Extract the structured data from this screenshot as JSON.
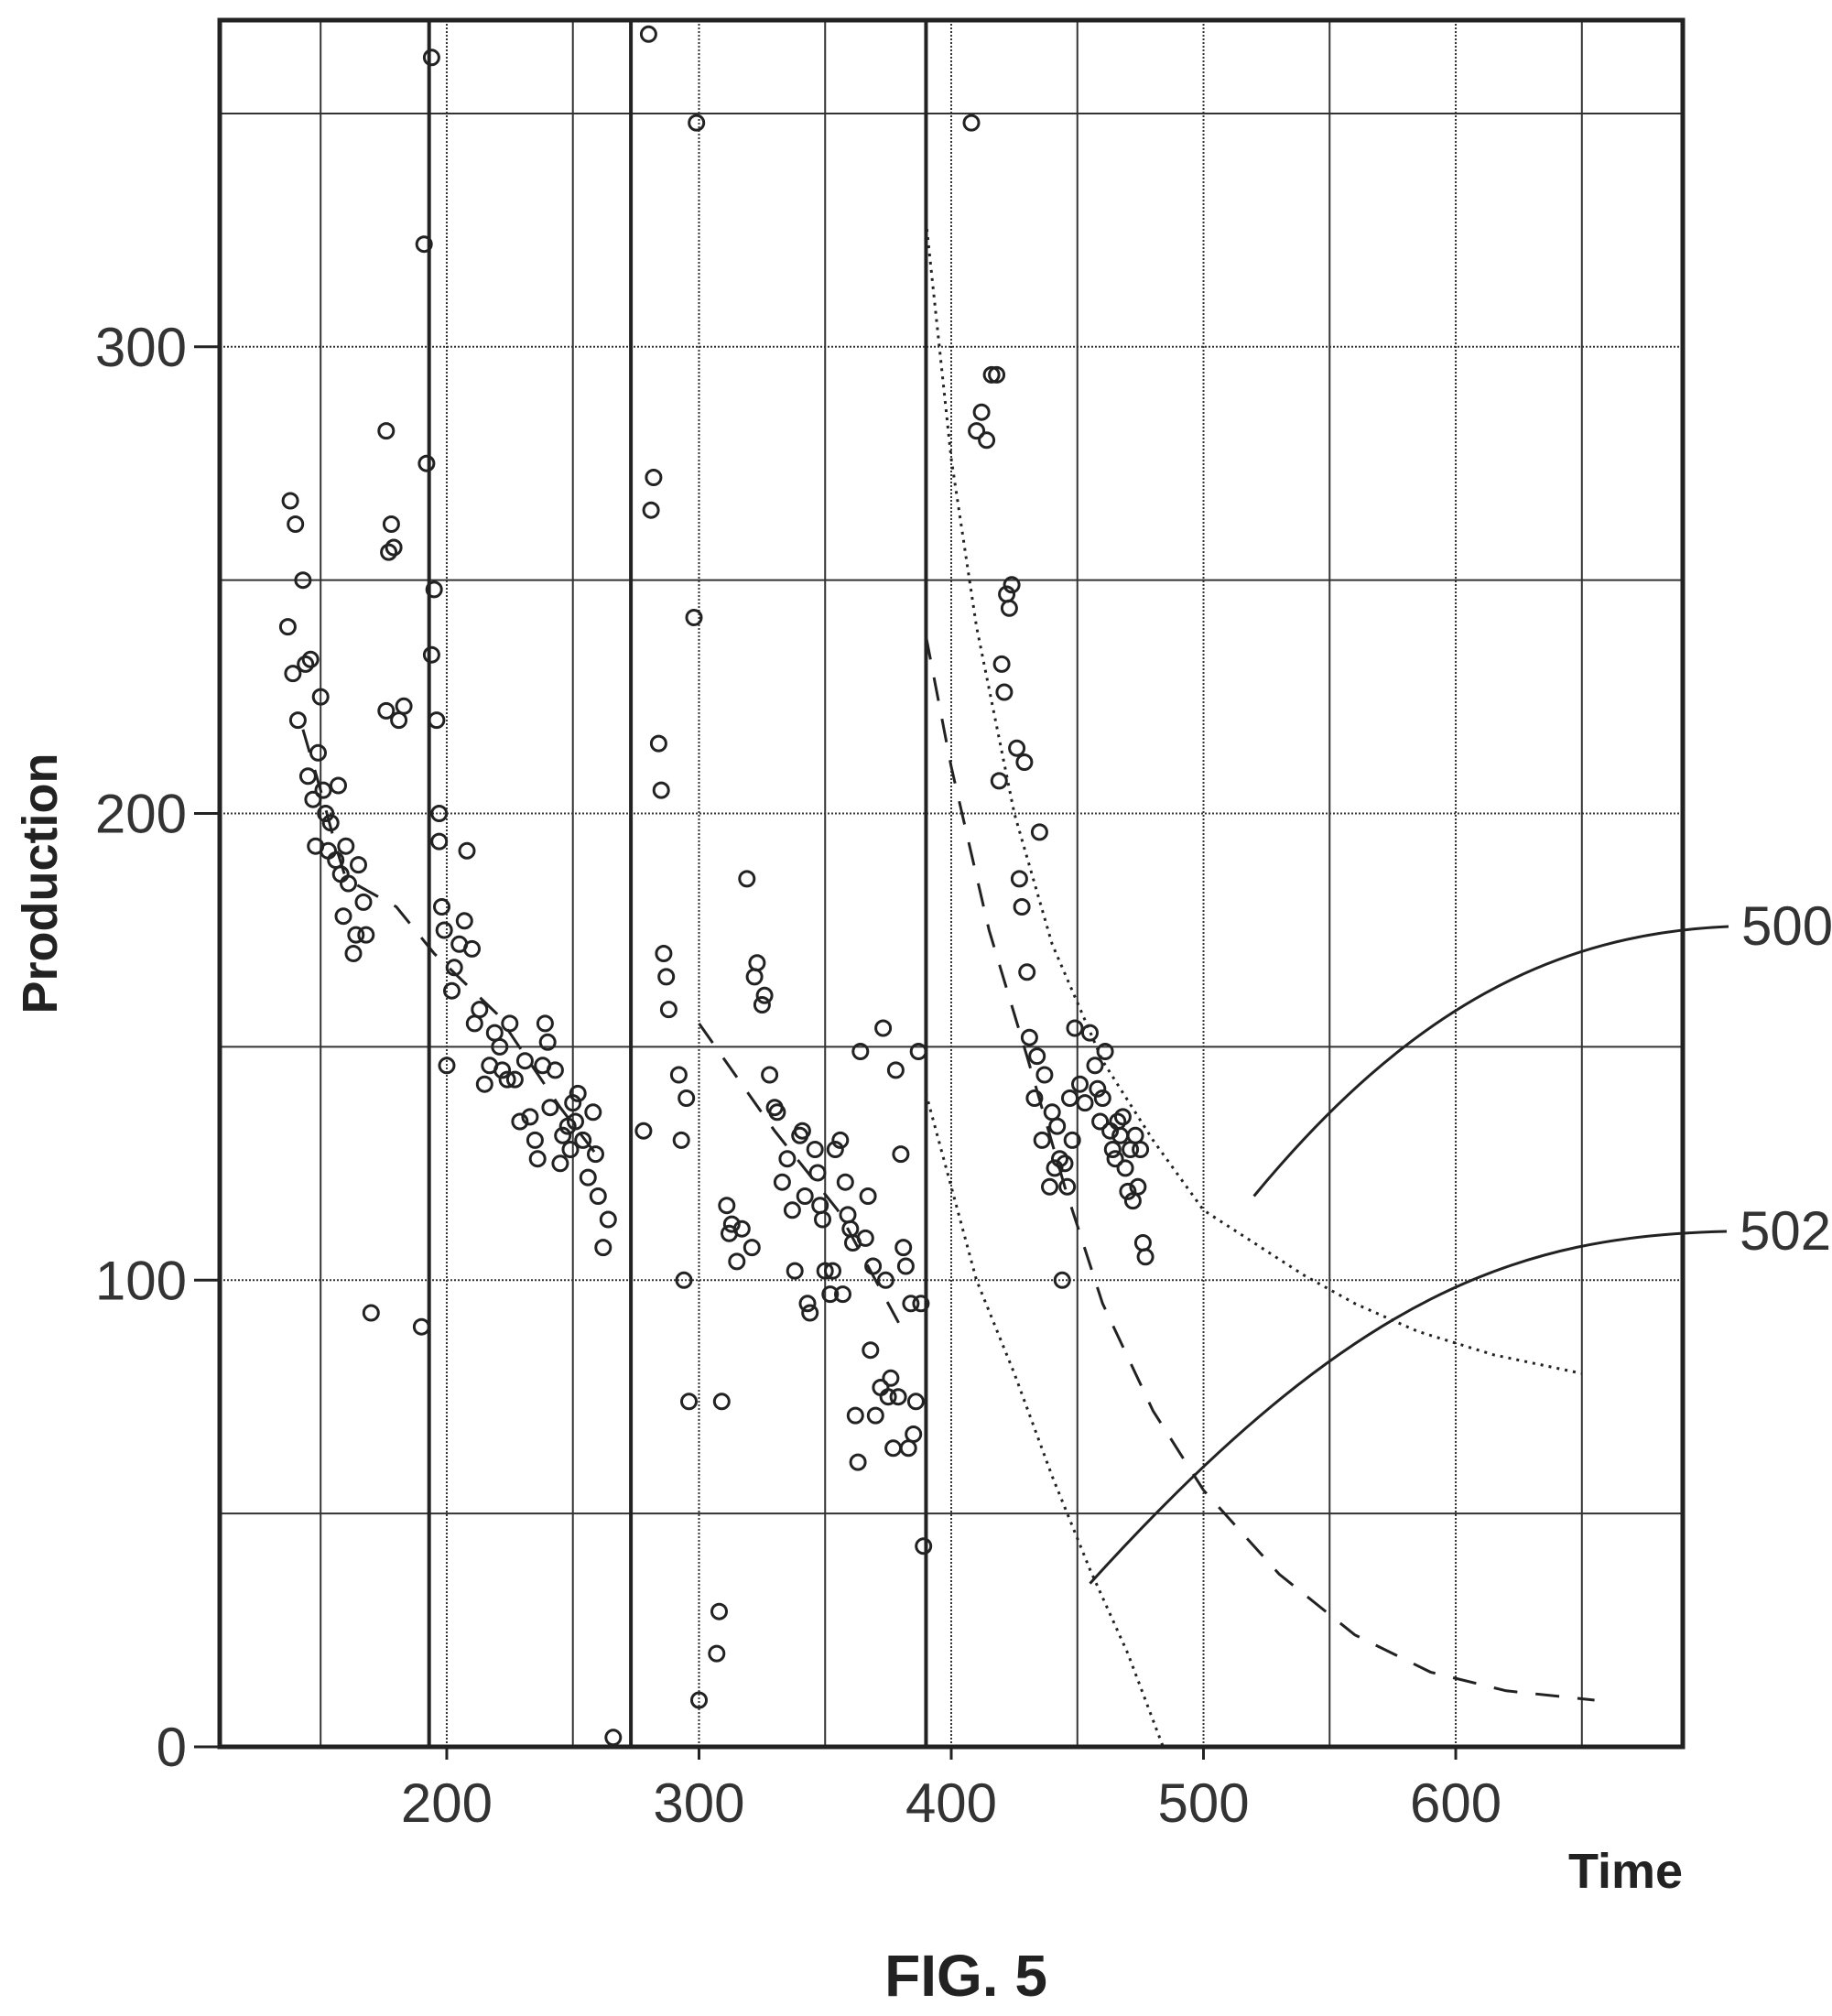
{
  "figure_label": "FIG. 5",
  "chart_data": {
    "type": "scatter",
    "xlabel": "Time",
    "ylabel": "Production",
    "xlim": [
      110,
      690
    ],
    "ylim": [
      0,
      370
    ],
    "x_ticks": [
      "200",
      "300",
      "400",
      "500",
      "600"
    ],
    "x_tick_values": [
      200,
      300,
      400,
      500,
      600
    ],
    "y_ticks": [
      "0",
      "100",
      "200",
      "300"
    ],
    "y_tick_values": [
      0,
      100,
      200,
      300
    ],
    "grid": true,
    "markers": "open-circle",
    "points": [
      [
        137,
        240
      ],
      [
        138,
        267
      ],
      [
        140,
        262
      ],
      [
        139,
        230
      ],
      [
        141,
        220
      ],
      [
        143,
        250
      ],
      [
        144,
        232
      ],
      [
        146,
        233
      ],
      [
        145,
        208
      ],
      [
        147,
        203
      ],
      [
        148,
        193
      ],
      [
        149,
        213
      ],
      [
        150,
        225
      ],
      [
        151,
        205
      ],
      [
        152,
        200
      ],
      [
        153,
        192
      ],
      [
        154,
        198
      ],
      [
        156,
        190
      ],
      [
        157,
        206
      ],
      [
        158,
        187
      ],
      [
        159,
        178
      ],
      [
        160,
        193
      ],
      [
        161,
        185
      ],
      [
        163,
        170
      ],
      [
        164,
        174
      ],
      [
        165,
        189
      ],
      [
        167,
        181
      ],
      [
        168,
        174
      ],
      [
        170,
        93
      ],
      [
        176,
        282
      ],
      [
        178,
        262
      ],
      [
        177,
        256
      ],
      [
        179,
        257
      ],
      [
        176,
        222
      ],
      [
        181,
        220
      ],
      [
        183,
        223
      ],
      [
        190,
        90
      ],
      [
        191,
        322
      ],
      [
        192,
        275
      ],
      [
        194,
        362
      ],
      [
        195,
        248
      ],
      [
        194,
        234
      ],
      [
        196,
        220
      ],
      [
        197,
        200
      ],
      [
        197,
        194
      ],
      [
        198,
        180
      ],
      [
        199,
        175
      ],
      [
        200,
        146
      ],
      [
        202,
        162
      ],
      [
        203,
        167
      ],
      [
        205,
        172
      ],
      [
        207,
        177
      ],
      [
        208,
        192
      ],
      [
        210,
        171
      ],
      [
        211,
        155
      ],
      [
        213,
        158
      ],
      [
        215,
        142
      ],
      [
        217,
        146
      ],
      [
        219,
        153
      ],
      [
        221,
        150
      ],
      [
        222,
        145
      ],
      [
        224,
        143
      ],
      [
        225,
        155
      ],
      [
        227,
        143
      ],
      [
        229,
        134
      ],
      [
        231,
        147
      ],
      [
        233,
        135
      ],
      [
        235,
        130
      ],
      [
        236,
        126
      ],
      [
        238,
        146
      ],
      [
        239,
        155
      ],
      [
        240,
        151
      ],
      [
        241,
        137
      ],
      [
        243,
        145
      ],
      [
        245,
        125
      ],
      [
        246,
        131
      ],
      [
        248,
        133
      ],
      [
        249,
        128
      ],
      [
        250,
        138
      ],
      [
        251,
        134
      ],
      [
        252,
        140
      ],
      [
        254,
        130
      ],
      [
        256,
        122
      ],
      [
        258,
        136
      ],
      [
        259,
        127
      ],
      [
        260,
        118
      ],
      [
        262,
        107
      ],
      [
        264,
        113
      ],
      [
        266,
        2
      ],
      [
        278,
        132
      ],
      [
        280,
        367
      ],
      [
        281,
        265
      ],
      [
        282,
        272
      ],
      [
        284,
        215
      ],
      [
        285,
        205
      ],
      [
        286,
        170
      ],
      [
        287,
        165
      ],
      [
        288,
        158
      ],
      [
        292,
        144
      ],
      [
        293,
        130
      ],
      [
        295,
        139
      ],
      [
        294,
        100
      ],
      [
        296,
        74
      ],
      [
        298,
        242
      ],
      [
        299,
        348
      ],
      [
        300,
        10
      ],
      [
        307,
        20
      ],
      [
        308,
        29
      ],
      [
        309,
        74
      ],
      [
        311,
        116
      ],
      [
        312,
        110
      ],
      [
        313,
        112
      ],
      [
        315,
        104
      ],
      [
        317,
        111
      ],
      [
        319,
        186
      ],
      [
        321,
        107
      ],
      [
        322,
        165
      ],
      [
        323,
        168
      ],
      [
        325,
        159
      ],
      [
        326,
        161
      ],
      [
        328,
        144
      ],
      [
        330,
        137
      ],
      [
        331,
        136
      ],
      [
        333,
        121
      ],
      [
        335,
        126
      ],
      [
        337,
        115
      ],
      [
        338,
        102
      ],
      [
        340,
        131
      ],
      [
        341,
        132
      ],
      [
        342,
        118
      ],
      [
        343,
        95
      ],
      [
        344,
        93
      ],
      [
        346,
        128
      ],
      [
        347,
        123
      ],
      [
        348,
        116
      ],
      [
        349,
        113
      ],
      [
        350,
        102
      ],
      [
        352,
        97
      ],
      [
        353,
        102
      ],
      [
        354,
        128
      ],
      [
        356,
        130
      ],
      [
        357,
        97
      ],
      [
        358,
        121
      ],
      [
        359,
        114
      ],
      [
        360,
        111
      ],
      [
        361,
        108
      ],
      [
        362,
        71
      ],
      [
        363,
        61
      ],
      [
        364,
        149
      ],
      [
        366,
        109
      ],
      [
        367,
        118
      ],
      [
        368,
        85
      ],
      [
        369,
        103
      ],
      [
        370,
        71
      ],
      [
        372,
        77
      ],
      [
        373,
        154
      ],
      [
        374,
        100
      ],
      [
        375,
        75
      ],
      [
        376,
        79
      ],
      [
        377,
        64
      ],
      [
        378,
        145
      ],
      [
        379,
        75
      ],
      [
        380,
        127
      ],
      [
        381,
        107
      ],
      [
        382,
        103
      ],
      [
        383,
        64
      ],
      [
        384,
        95
      ],
      [
        385,
        67
      ],
      [
        386,
        74
      ],
      [
        387,
        149
      ],
      [
        388,
        95
      ],
      [
        389,
        43
      ],
      [
        408,
        348
      ],
      [
        410,
        282
      ],
      [
        412,
        286
      ],
      [
        414,
        280
      ],
      [
        416,
        294
      ],
      [
        418,
        294
      ],
      [
        419,
        207
      ],
      [
        420,
        232
      ],
      [
        421,
        226
      ],
      [
        422,
        247
      ],
      [
        423,
        244
      ],
      [
        424,
        249
      ],
      [
        426,
        214
      ],
      [
        427,
        186
      ],
      [
        428,
        180
      ],
      [
        429,
        211
      ],
      [
        430,
        166
      ],
      [
        431,
        152
      ],
      [
        433,
        139
      ],
      [
        434,
        148
      ],
      [
        435,
        196
      ],
      [
        436,
        130
      ],
      [
        437,
        144
      ],
      [
        439,
        120
      ],
      [
        440,
        136
      ],
      [
        441,
        124
      ],
      [
        442,
        133
      ],
      [
        443,
        126
      ],
      [
        444,
        100
      ],
      [
        445,
        125
      ],
      [
        446,
        120
      ],
      [
        447,
        139
      ],
      [
        448,
        130
      ],
      [
        449,
        154
      ],
      [
        451,
        142
      ],
      [
        453,
        138
      ],
      [
        455,
        153
      ],
      [
        457,
        146
      ],
      [
        458,
        141
      ],
      [
        459,
        134
      ],
      [
        460,
        139
      ],
      [
        461,
        149
      ],
      [
        463,
        132
      ],
      [
        464,
        128
      ],
      [
        465,
        126
      ],
      [
        466,
        134
      ],
      [
        467,
        131
      ],
      [
        468,
        135
      ],
      [
        469,
        124
      ],
      [
        470,
        119
      ],
      [
        471,
        128
      ],
      [
        472,
        117
      ],
      [
        473,
        131
      ],
      [
        474,
        120
      ],
      [
        475,
        128
      ],
      [
        476,
        108
      ],
      [
        477,
        105
      ]
    ],
    "curves": [
      {
        "name": "",
        "style": "dashed",
        "points": [
          [
            143,
            218
          ],
          [
            150,
            205
          ],
          [
            156,
            193
          ],
          [
            160,
            186
          ],
          [
            180,
            180
          ],
          [
            195,
            170
          ],
          [
            220,
            157
          ],
          [
            245,
            137
          ],
          [
            262,
            125
          ]
        ]
      },
      {
        "name": "",
        "style": "dashed",
        "points": [
          [
            300,
            155
          ],
          [
            330,
            132
          ],
          [
            355,
            115
          ],
          [
            370,
            100
          ],
          [
            380,
            90
          ]
        ]
      },
      {
        "name": "",
        "style": "dashed",
        "points": [
          [
            390,
            238
          ],
          [
            400,
            210
          ],
          [
            415,
            175
          ],
          [
            430,
            148
          ],
          [
            445,
            120
          ],
          [
            460,
            95
          ],
          [
            480,
            72
          ],
          [
            500,
            55
          ],
          [
            530,
            37
          ],
          [
            560,
            24
          ],
          [
            590,
            16
          ],
          [
            620,
            12
          ],
          [
            655,
            10
          ]
        ]
      },
      {
        "name": "",
        "style": "dotted",
        "points": [
          [
            390,
            327
          ],
          [
            400,
            276
          ],
          [
            410,
            240
          ],
          [
            425,
            200
          ],
          [
            440,
            172
          ],
          [
            460,
            147
          ],
          [
            480,
            130
          ],
          [
            500,
            115
          ],
          [
            520,
            108
          ],
          [
            540,
            101
          ],
          [
            560,
            95
          ],
          [
            585,
            89
          ],
          [
            615,
            84
          ],
          [
            650,
            80
          ]
        ]
      },
      {
        "name": "",
        "style": "dotted",
        "points": [
          [
            390,
            140
          ],
          [
            400,
            120
          ],
          [
            410,
            100
          ],
          [
            425,
            80
          ],
          [
            440,
            58
          ],
          [
            455,
            38
          ],
          [
            470,
            20
          ],
          [
            484,
            0
          ]
        ]
      }
    ],
    "vertical_lines": [
      193,
      273,
      390
    ],
    "annotations": [
      {
        "label": "500",
        "target": [
          520,
          118
        ],
        "leader": "curve"
      },
      {
        "label": "502",
        "target": [
          455,
          35
        ],
        "leader": "curve"
      }
    ]
  }
}
